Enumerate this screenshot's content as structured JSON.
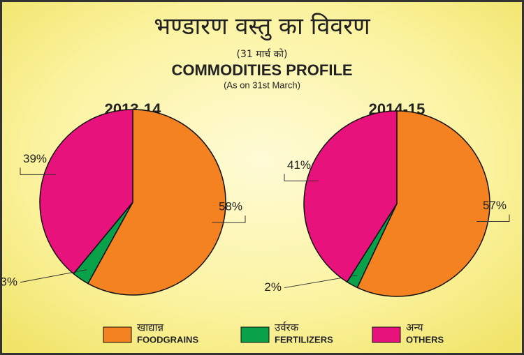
{
  "header": {
    "hindi_title": "भण्डारण वस्तु का विवरण",
    "hindi_subtitle": "(31 मार्च को)",
    "title": "COMMODITIES PROFILE",
    "subtitle": "(As on 31st March)"
  },
  "legend": [
    {
      "hindi": "खाद्यान्न",
      "name": "FOODGRAINS",
      "color": "#f58220"
    },
    {
      "hindi": "उर्वरक",
      "name": "FERTILIZERS",
      "color": "#0aa14b"
    },
    {
      "hindi": "अन्य",
      "name": "OTHERS",
      "color": "#e8127c"
    }
  ],
  "chart_data": [
    {
      "type": "pie",
      "title": "2013-14",
      "values": [
        58,
        3,
        39
      ],
      "value_labels": [
        "58%",
        "3%",
        "39%"
      ]
    },
    {
      "type": "pie",
      "title": "2014-15",
      "values": [
        57,
        2,
        41
      ],
      "value_labels": [
        "57%",
        "2%",
        "41%"
      ]
    }
  ]
}
